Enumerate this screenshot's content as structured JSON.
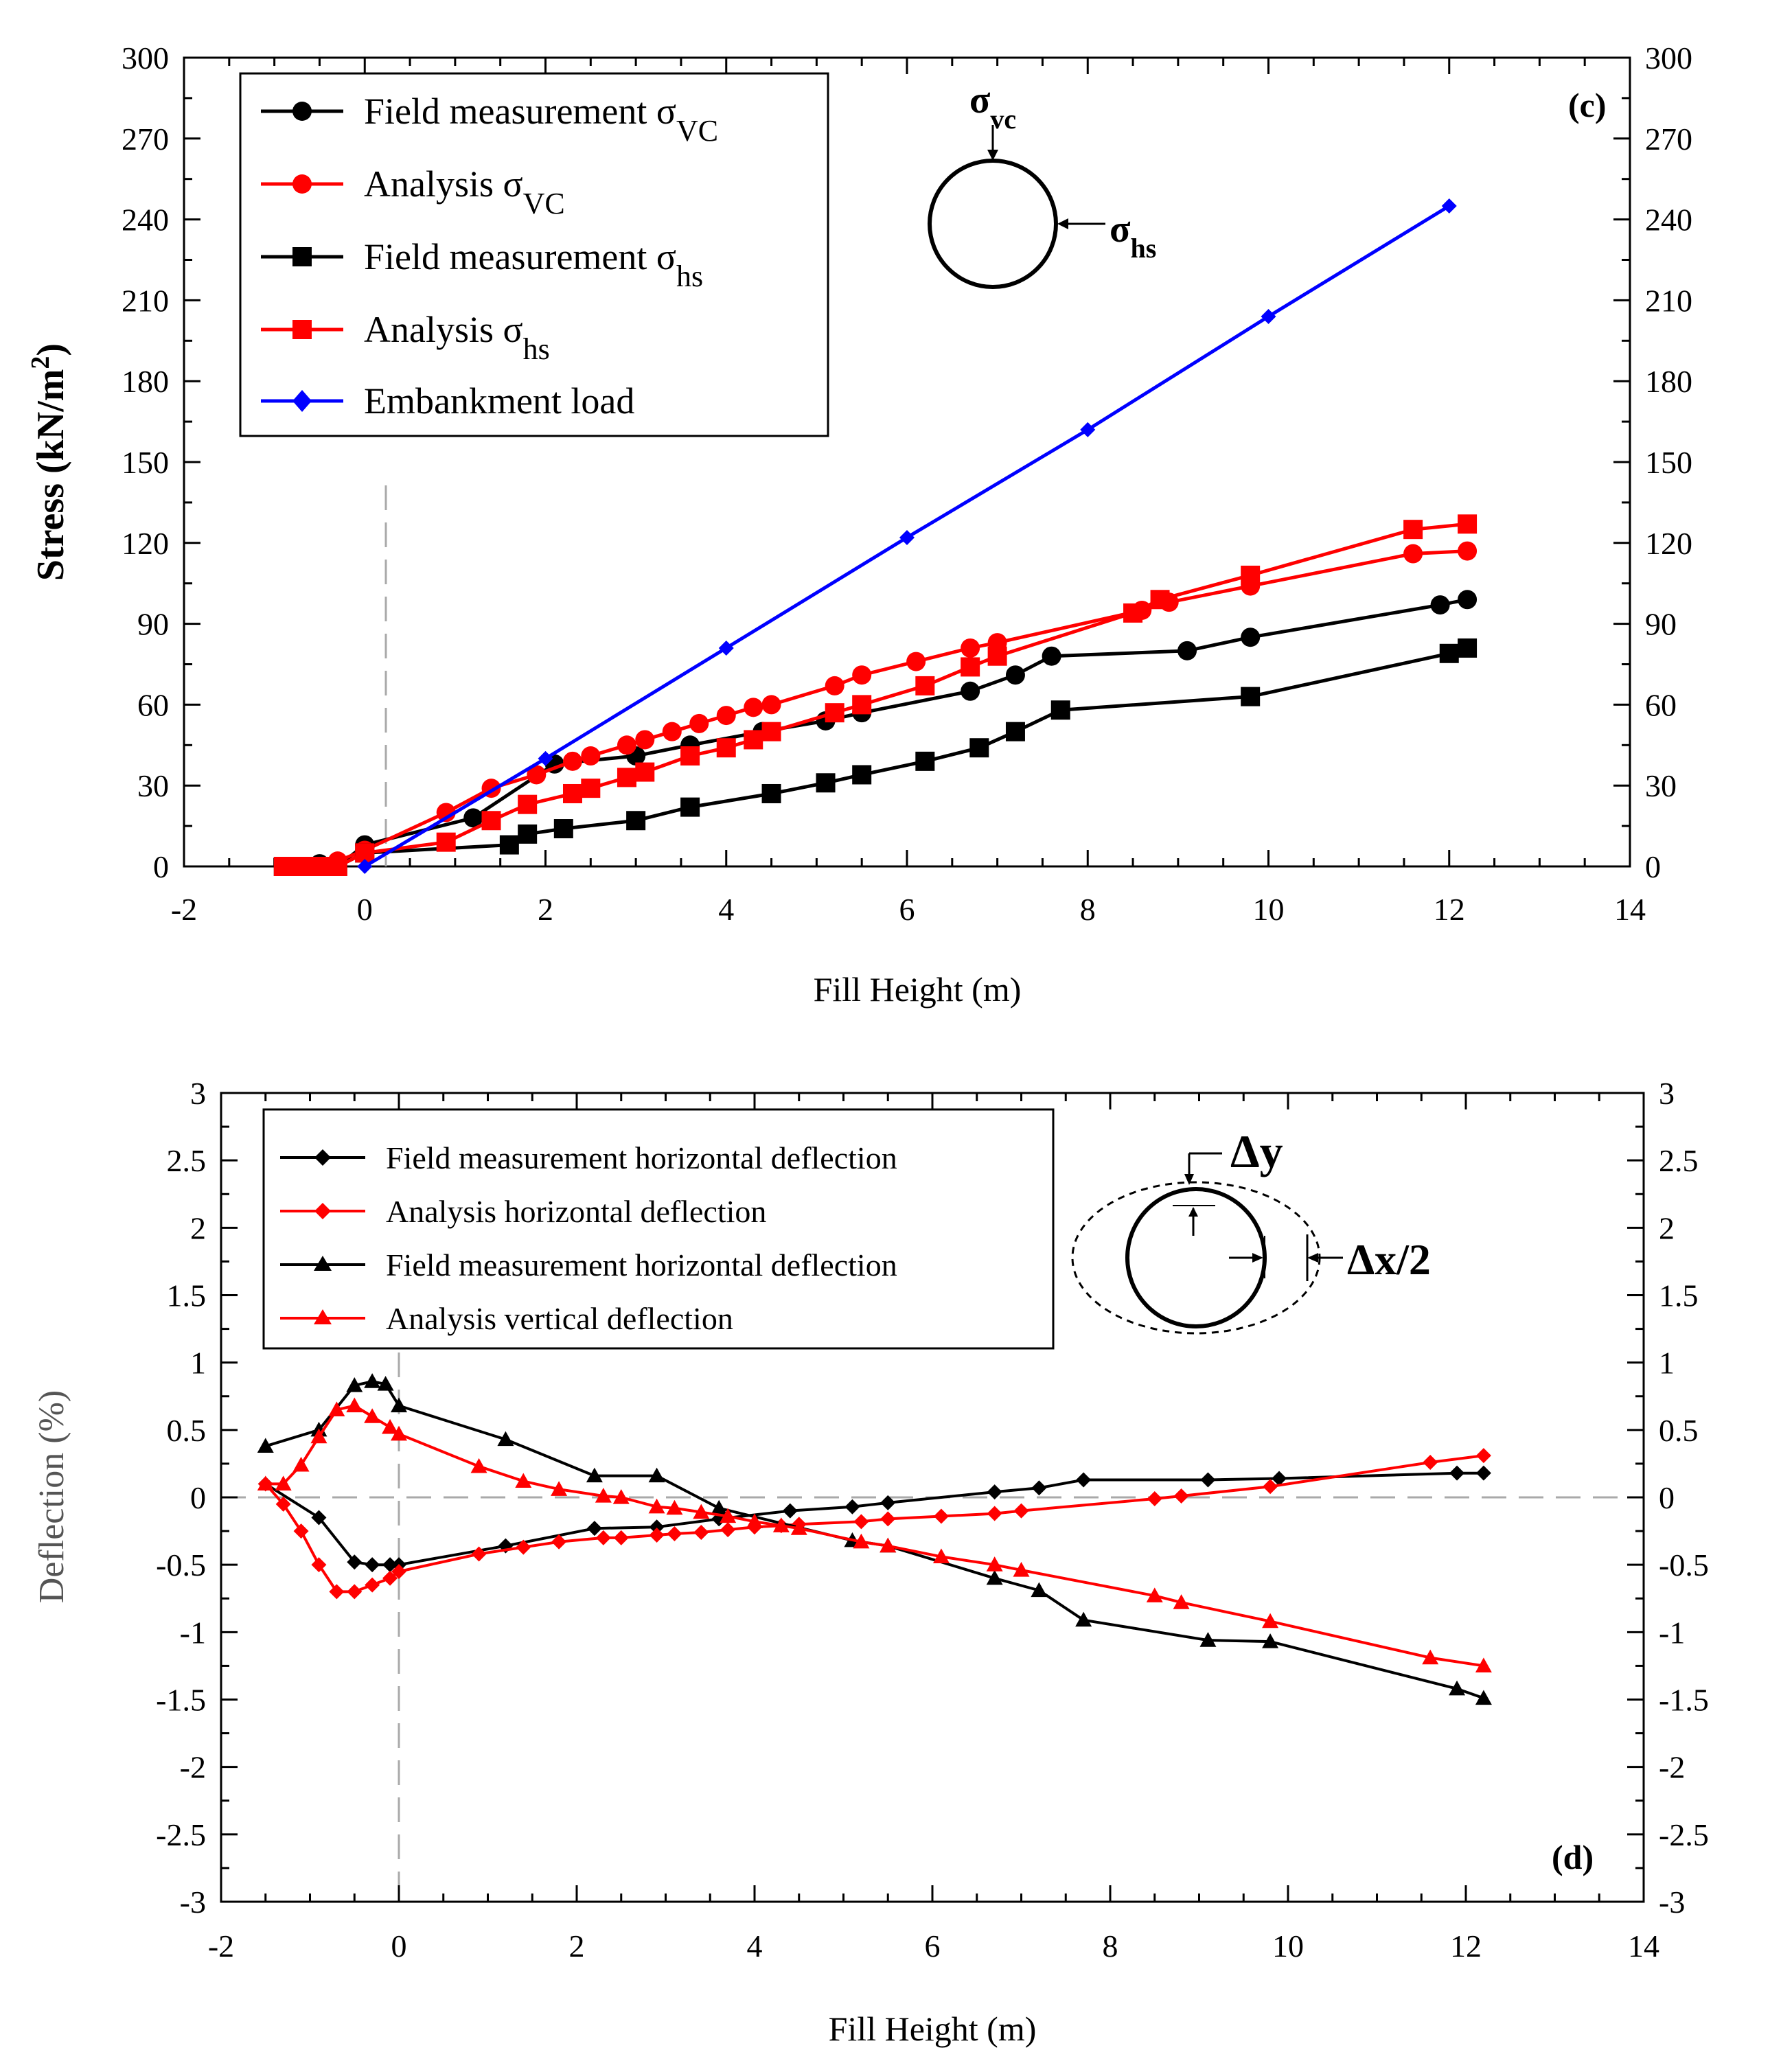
{
  "chart_data": [
    {
      "panel": "(c)",
      "type": "line",
      "xlabel": "Fill Height (m)",
      "ylabel": "Stress (kN/m²)",
      "ylabel_main": "Stress (kN/m",
      "ylabel_sup": "2",
      "ylabel_close": ")",
      "xlim": [
        -2,
        14
      ],
      "ylim": [
        0,
        300
      ],
      "xticks": [
        -2,
        0,
        2,
        4,
        6,
        8,
        10,
        12,
        14
      ],
      "yticks": [
        0,
        30,
        60,
        90,
        120,
        150,
        180,
        210,
        240,
        270,
        300
      ],
      "grid": false,
      "legend_position": "top-left",
      "reference_line_x": 0,
      "inset": {
        "top_label": "σvc",
        "top_label_main": "σ",
        "top_label_sub": "vc",
        "side_label": "σhs",
        "side_label_main": "σ",
        "side_label_sub": "hs"
      },
      "series": [
        {
          "name": "Field measurement σvc",
          "legend_main": "Field measurement σ",
          "legend_sub": "VC",
          "color": "#000000",
          "marker": "circle",
          "x": [
            -0.9,
            -0.7,
            -0.5,
            -0.3,
            0.0,
            1.2,
            2.1,
            3.0,
            3.6,
            4.4,
            5.1,
            5.5,
            6.7,
            7.2,
            7.6,
            9.1,
            9.8,
            11.9,
            12.2
          ],
          "y": [
            0,
            0,
            1,
            0,
            8,
            18,
            38,
            41,
            45,
            50,
            54,
            57,
            65,
            71,
            78,
            80,
            85,
            97,
            99
          ]
        },
        {
          "name": "Analysis σvc",
          "legend_main": "Analysis σ",
          "legend_sub": "VC",
          "color": "#ff0000",
          "marker": "circle",
          "x": [
            -0.9,
            -0.7,
            -0.5,
            -0.3,
            0.0,
            0.9,
            1.4,
            1.9,
            2.3,
            2.5,
            2.9,
            3.1,
            3.4,
            3.7,
            4.0,
            4.3,
            4.5,
            5.2,
            5.5,
            6.1,
            6.7,
            7.0,
            8.6,
            8.9,
            9.8,
            11.6,
            12.2
          ],
          "y": [
            0,
            0,
            0,
            2,
            6,
            20,
            29,
            34,
            39,
            41,
            45,
            47,
            50,
            53,
            56,
            59,
            60,
            67,
            71,
            76,
            81,
            83,
            95,
            98,
            104,
            116,
            117
          ]
        },
        {
          "name": "Field measurement σhs",
          "legend_main": "Field measurement σ",
          "legend_sub": "hs",
          "color": "#000000",
          "marker": "square",
          "x": [
            -0.9,
            -0.7,
            -0.5,
            -0.3,
            0.0,
            1.6,
            1.8,
            2.2,
            3.0,
            3.6,
            4.5,
            5.1,
            5.5,
            6.2,
            6.8,
            7.2,
            7.7,
            9.8,
            12.0,
            12.2
          ],
          "y": [
            0,
            0,
            0,
            0,
            5,
            8,
            12,
            14,
            17,
            22,
            27,
            31,
            34,
            39,
            44,
            50,
            58,
            63,
            79,
            81
          ]
        },
        {
          "name": "Analysis σhs",
          "legend_main": "Analysis σ",
          "legend_sub": "hs",
          "color": "#ff0000",
          "marker": "square",
          "x": [
            -0.9,
            -0.7,
            -0.5,
            -0.3,
            0.0,
            0.9,
            1.4,
            1.8,
            2.3,
            2.5,
            2.9,
            3.1,
            3.6,
            4.0,
            4.3,
            4.5,
            5.2,
            5.5,
            6.2,
            6.7,
            7.0,
            8.5,
            8.8,
            9.8,
            11.6,
            12.2
          ],
          "y": [
            0,
            0,
            0,
            0,
            5,
            9,
            17,
            23,
            27,
            29,
            33,
            35,
            41,
            44,
            47,
            50,
            57,
            60,
            67,
            74,
            78,
            94,
            99,
            108,
            125,
            127
          ]
        },
        {
          "name": "Embankment load",
          "legend_main": "Embankment load",
          "legend_sub": "",
          "color": "#0000ff",
          "marker": "diamond",
          "x": [
            0,
            2,
            4,
            6,
            8,
            10,
            12
          ],
          "y": [
            0,
            40,
            81,
            122,
            162,
            204,
            245
          ]
        }
      ]
    },
    {
      "panel": "(d)",
      "type": "line",
      "xlabel": "Fill Height (m)",
      "ylabel": "Deflection (%)",
      "xlim": [
        -2,
        14
      ],
      "ylim": [
        -3,
        3
      ],
      "xticks": [
        -2,
        0,
        2,
        4,
        6,
        8,
        10,
        12,
        14
      ],
      "xtick_labels": [
        "-2",
        "0",
        "2",
        "4",
        "6",
        "8",
        "10",
        "12",
        "14"
      ],
      "yticks": [
        -3,
        -2.5,
        -2,
        -1.5,
        -1,
        -0.5,
        0,
        0.5,
        1,
        1.5,
        2,
        2.5,
        3
      ],
      "ytick_labels": [
        "-3",
        "-2.5",
        "-2",
        "-1.5",
        "-1",
        "-0.5",
        "0",
        "0.5",
        "1",
        "1.5",
        "2",
        "2.5",
        "3"
      ],
      "grid": false,
      "legend_position": "top-left",
      "reference_line_x": 0,
      "reference_line_y": 0,
      "inset": {
        "dy_label": "Δy",
        "dx_label": "Δx/2"
      },
      "series": [
        {
          "name": "Field measurement horizontal deflection",
          "color": "#000000",
          "marker": "diamond",
          "x": [
            -1.5,
            -0.9,
            -0.5,
            -0.3,
            -0.1,
            0.0,
            1.2,
            2.2,
            2.9,
            3.6,
            4.4,
            5.1,
            5.5,
            6.7,
            7.2,
            7.7,
            9.1,
            9.9,
            11.9,
            12.2
          ],
          "y": [
            0.1,
            -0.15,
            -0.48,
            -0.5,
            -0.5,
            -0.5,
            -0.36,
            -0.23,
            -0.22,
            -0.16,
            -0.1,
            -0.07,
            -0.04,
            0.04,
            0.07,
            0.13,
            0.13,
            0.14,
            0.18,
            0.18
          ]
        },
        {
          "name": "Analysis horizontal deflection",
          "color": "#ff0000",
          "marker": "diamond",
          "x": [
            -1.5,
            -1.3,
            -1.1,
            -0.9,
            -0.7,
            -0.5,
            -0.3,
            -0.1,
            0.0,
            0.9,
            1.4,
            1.8,
            2.3,
            2.5,
            2.9,
            3.1,
            3.4,
            3.7,
            4.0,
            4.3,
            4.5,
            5.2,
            5.5,
            6.1,
            6.7,
            7.0,
            8.5,
            8.8,
            9.8,
            11.6,
            12.2
          ],
          "y": [
            0.1,
            -0.05,
            -0.25,
            -0.5,
            -0.7,
            -0.7,
            -0.65,
            -0.6,
            -0.55,
            -0.42,
            -0.37,
            -0.33,
            -0.3,
            -0.3,
            -0.28,
            -0.27,
            -0.26,
            -0.24,
            -0.22,
            -0.21,
            -0.2,
            -0.18,
            -0.16,
            -0.14,
            -0.12,
            -0.1,
            -0.01,
            0.01,
            0.08,
            0.26,
            0.31
          ]
        },
        {
          "name": "Field measurement horizontal deflection",
          "color": "#000000",
          "marker": "triangle",
          "x": [
            -1.5,
            -0.9,
            -0.5,
            -0.3,
            -0.15,
            0.0,
            1.2,
            2.2,
            2.9,
            3.6,
            5.1,
            5.5,
            6.7,
            7.2,
            7.7,
            9.1,
            9.8,
            11.9,
            12.2
          ],
          "y": [
            0.38,
            0.5,
            0.83,
            0.86,
            0.84,
            0.68,
            0.43,
            0.16,
            0.16,
            -0.08,
            -0.32,
            -0.36,
            -0.6,
            -0.69,
            -0.91,
            -1.06,
            -1.07,
            -1.42,
            -1.49
          ]
        },
        {
          "name": "Analysis vertical deflection",
          "color": "#ff0000",
          "marker": "triangle",
          "x": [
            -1.5,
            -1.3,
            -1.1,
            -0.9,
            -0.7,
            -0.5,
            -0.3,
            -0.1,
            0.0,
            0.9,
            1.4,
            1.8,
            2.3,
            2.5,
            2.9,
            3.1,
            3.4,
            3.7,
            4.0,
            4.3,
            4.5,
            5.2,
            5.5,
            6.1,
            6.7,
            7.0,
            8.5,
            8.8,
            9.8,
            11.6,
            12.2
          ],
          "y": [
            0.1,
            0.1,
            0.24,
            0.45,
            0.65,
            0.68,
            0.6,
            0.52,
            0.47,
            0.23,
            0.12,
            0.06,
            0.01,
            0.0,
            -0.07,
            -0.08,
            -0.11,
            -0.14,
            -0.18,
            -0.21,
            -0.23,
            -0.33,
            -0.36,
            -0.44,
            -0.5,
            -0.54,
            -0.73,
            -0.78,
            -0.92,
            -1.19,
            -1.25
          ]
        }
      ]
    }
  ]
}
